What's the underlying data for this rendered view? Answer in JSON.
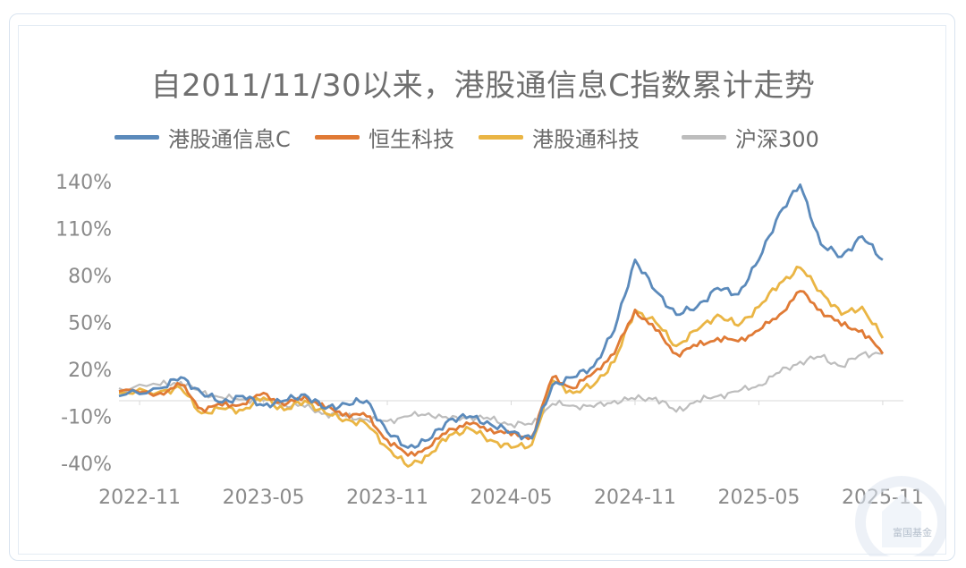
{
  "chart_data": {
    "type": "line",
    "title": "自2011/11/30以来，港股通信息C指数累计走势",
    "x_ticks": [
      "2022-11",
      "2023-05",
      "2023-11",
      "2024-05",
      "2024-11",
      "2025-05",
      "2025-11"
    ],
    "y_ticks": [
      "140%",
      "110%",
      "80%",
      "50%",
      "20%",
      "-10%",
      "-40%"
    ],
    "ylim": [
      -40,
      140
    ],
    "xlim": [
      "2022-10",
      "2025-12"
    ],
    "grid": false,
    "legend_position": "top",
    "series": [
      {
        "name": "港股通信息C",
        "color": "#5b8abb",
        "points": [
          [
            "2022-10",
            3
          ],
          [
            "2022-12",
            8
          ],
          [
            "2023-01",
            15
          ],
          [
            "2023-02",
            5
          ],
          [
            "2023-03",
            -1
          ],
          [
            "2023-04",
            3
          ],
          [
            "2023-05",
            -3
          ],
          [
            "2023-06",
            0
          ],
          [
            "2023-07",
            4
          ],
          [
            "2023-08",
            -5
          ],
          [
            "2023-09",
            -2
          ],
          [
            "2023-10",
            0
          ],
          [
            "2023-11",
            -20
          ],
          [
            "2023-12",
            -30
          ],
          [
            "2024-01",
            -25
          ],
          [
            "2024-02",
            -12
          ],
          [
            "2024-03",
            -10
          ],
          [
            "2024-04",
            -15
          ],
          [
            "2024-05",
            -20
          ],
          [
            "2024-06",
            -24
          ],
          [
            "2024-07",
            10
          ],
          [
            "2024-08",
            15
          ],
          [
            "2024-09",
            22
          ],
          [
            "2024-10",
            45
          ],
          [
            "2024-11",
            90
          ],
          [
            "2024-12",
            70
          ],
          [
            "2025-01",
            55
          ],
          [
            "2025-02",
            60
          ],
          [
            "2025-03",
            72
          ],
          [
            "2025-04",
            68
          ],
          [
            "2025-05",
            90
          ],
          [
            "2025-06",
            120
          ],
          [
            "2025-07",
            138
          ],
          [
            "2025-08",
            100
          ],
          [
            "2025-09",
            92
          ],
          [
            "2025-10",
            105
          ],
          [
            "2025-11",
            90
          ]
        ]
      },
      {
        "name": "恒生科技",
        "color": "#e07a35",
        "points": [
          [
            "2022-10",
            6
          ],
          [
            "2022-12",
            5
          ],
          [
            "2023-01",
            10
          ],
          [
            "2023-02",
            -5
          ],
          [
            "2023-03",
            -3
          ],
          [
            "2023-04",
            -2
          ],
          [
            "2023-05",
            5
          ],
          [
            "2023-06",
            -3
          ],
          [
            "2023-07",
            3
          ],
          [
            "2023-08",
            -5
          ],
          [
            "2023-09",
            -8
          ],
          [
            "2023-10",
            -10
          ],
          [
            "2023-11",
            -25
          ],
          [
            "2023-12",
            -35
          ],
          [
            "2024-01",
            -30
          ],
          [
            "2024-02",
            -18
          ],
          [
            "2024-03",
            -15
          ],
          [
            "2024-04",
            -18
          ],
          [
            "2024-05",
            -22
          ],
          [
            "2024-06",
            -23
          ],
          [
            "2024-07",
            15
          ],
          [
            "2024-08",
            8
          ],
          [
            "2024-09",
            18
          ],
          [
            "2024-10",
            30
          ],
          [
            "2024-11",
            58
          ],
          [
            "2024-12",
            45
          ],
          [
            "2025-01",
            30
          ],
          [
            "2025-02",
            35
          ],
          [
            "2025-03",
            40
          ],
          [
            "2025-04",
            38
          ],
          [
            "2025-05",
            45
          ],
          [
            "2025-06",
            55
          ],
          [
            "2025-07",
            70
          ],
          [
            "2025-08",
            58
          ],
          [
            "2025-09",
            48
          ],
          [
            "2025-10",
            45
          ],
          [
            "2025-11",
            30
          ]
        ]
      },
      {
        "name": "港股通科技",
        "color": "#eab544",
        "points": [
          [
            "2022-10",
            5
          ],
          [
            "2022-12",
            6
          ],
          [
            "2023-01",
            8
          ],
          [
            "2023-02",
            -8
          ],
          [
            "2023-03",
            -5
          ],
          [
            "2023-04",
            -6
          ],
          [
            "2023-05",
            2
          ],
          [
            "2023-06",
            -6
          ],
          [
            "2023-07",
            0
          ],
          [
            "2023-08",
            -8
          ],
          [
            "2023-09",
            -12
          ],
          [
            "2023-10",
            -15
          ],
          [
            "2023-11",
            -30
          ],
          [
            "2023-12",
            -42
          ],
          [
            "2024-01",
            -35
          ],
          [
            "2024-02",
            -22
          ],
          [
            "2024-03",
            -18
          ],
          [
            "2024-04",
            -25
          ],
          [
            "2024-05",
            -30
          ],
          [
            "2024-06",
            -28
          ],
          [
            "2024-07",
            13
          ],
          [
            "2024-08",
            5
          ],
          [
            "2024-09",
            10
          ],
          [
            "2024-10",
            25
          ],
          [
            "2024-11",
            58
          ],
          [
            "2024-12",
            50
          ],
          [
            "2025-01",
            35
          ],
          [
            "2025-02",
            45
          ],
          [
            "2025-03",
            55
          ],
          [
            "2025-04",
            48
          ],
          [
            "2025-05",
            60
          ],
          [
            "2025-06",
            75
          ],
          [
            "2025-07",
            85
          ],
          [
            "2025-08",
            70
          ],
          [
            "2025-09",
            55
          ],
          [
            "2025-10",
            60
          ],
          [
            "2025-11",
            40
          ]
        ]
      },
      {
        "name": "沪深300",
        "color": "#bdbdbd",
        "points": [
          [
            "2022-10",
            8
          ],
          [
            "2022-12",
            10
          ],
          [
            "2023-01",
            12
          ],
          [
            "2023-02",
            5
          ],
          [
            "2023-03",
            2
          ],
          [
            "2023-04",
            1
          ],
          [
            "2023-05",
            0
          ],
          [
            "2023-06",
            -2
          ],
          [
            "2023-07",
            -4
          ],
          [
            "2023-08",
            -8
          ],
          [
            "2023-09",
            -10
          ],
          [
            "2023-10",
            -12
          ],
          [
            "2023-11",
            -13
          ],
          [
            "2023-12",
            -10
          ],
          [
            "2024-01",
            -8
          ],
          [
            "2024-02",
            -12
          ],
          [
            "2024-03",
            -10
          ],
          [
            "2024-04",
            -12
          ],
          [
            "2024-05",
            -15
          ],
          [
            "2024-06",
            -15
          ],
          [
            "2024-07",
            -2
          ],
          [
            "2024-08",
            -3
          ],
          [
            "2024-09",
            -4
          ],
          [
            "2024-10",
            0
          ],
          [
            "2024-11",
            1
          ],
          [
            "2024-12",
            2
          ],
          [
            "2025-01",
            -7
          ],
          [
            "2025-02",
            0
          ],
          [
            "2025-03",
            3
          ],
          [
            "2025-04",
            6
          ],
          [
            "2025-05",
            10
          ],
          [
            "2025-06",
            18
          ],
          [
            "2025-07",
            25
          ],
          [
            "2025-08",
            28
          ],
          [
            "2025-09",
            22
          ],
          [
            "2025-10",
            30
          ],
          [
            "2025-11",
            30
          ]
        ]
      }
    ]
  },
  "watermark": {
    "text": "富国基金"
  }
}
